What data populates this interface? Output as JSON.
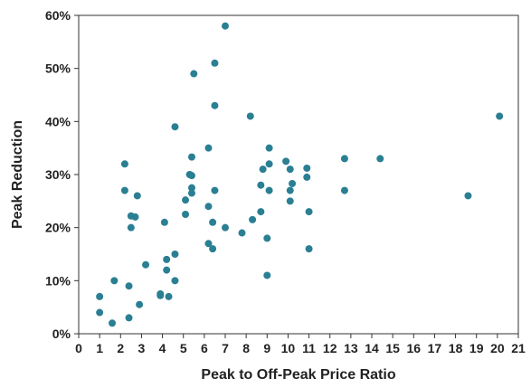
{
  "chart_data": {
    "type": "scatter",
    "title": "",
    "xlabel": "Peak to Off-Peak Price Ratio",
    "ylabel": "Peak Reduction",
    "xlim": [
      0,
      21
    ],
    "ylim": [
      0,
      60
    ],
    "x_ticks": [
      "0",
      "1",
      "2",
      "3",
      "4",
      "5",
      "6",
      "7",
      "8",
      "9",
      "10",
      "11",
      "12",
      "13",
      "14",
      "15",
      "16",
      "17",
      "18",
      "19",
      "20",
      "21"
    ],
    "y_ticks": [
      "0%",
      "10%",
      "20%",
      "30%",
      "40%",
      "50%",
      "60%"
    ],
    "grid": false,
    "legend": "none",
    "marker_color": "#2a7f93",
    "series": [
      {
        "points": [
          [
            1.0,
            7
          ],
          [
            1.0,
            4
          ],
          [
            1.6,
            2
          ],
          [
            1.7,
            10
          ],
          [
            2.2,
            32
          ],
          [
            2.2,
            27
          ],
          [
            2.4,
            9
          ],
          [
            2.4,
            3
          ],
          [
            2.5,
            22.2
          ],
          [
            2.5,
            20
          ],
          [
            2.7,
            22
          ],
          [
            2.8,
            26
          ],
          [
            2.9,
            5.5
          ],
          [
            3.2,
            13
          ],
          [
            3.9,
            7.5
          ],
          [
            3.9,
            7.2
          ],
          [
            4.1,
            21
          ],
          [
            4.2,
            14
          ],
          [
            4.2,
            12
          ],
          [
            4.3,
            7
          ],
          [
            4.6,
            39
          ],
          [
            4.6,
            15
          ],
          [
            4.6,
            10
          ],
          [
            5.1,
            25.2
          ],
          [
            5.1,
            22.5
          ],
          [
            5.3,
            30
          ],
          [
            5.4,
            33.3
          ],
          [
            5.4,
            29.8
          ],
          [
            5.4,
            27.5
          ],
          [
            5.4,
            26.5
          ],
          [
            5.5,
            49
          ],
          [
            6.2,
            35
          ],
          [
            6.2,
            24
          ],
          [
            6.2,
            17
          ],
          [
            6.4,
            21
          ],
          [
            6.4,
            16
          ],
          [
            6.5,
            51
          ],
          [
            6.5,
            43
          ],
          [
            6.5,
            27
          ],
          [
            7.0,
            58
          ],
          [
            7.0,
            20
          ],
          [
            7.8,
            19
          ],
          [
            8.2,
            41
          ],
          [
            8.3,
            21.5
          ],
          [
            8.7,
            28
          ],
          [
            8.7,
            23
          ],
          [
            8.8,
            31
          ],
          [
            9.0,
            18
          ],
          [
            9.0,
            11
          ],
          [
            9.1,
            35
          ],
          [
            9.1,
            32
          ],
          [
            9.1,
            27
          ],
          [
            9.9,
            32.5
          ],
          [
            10.1,
            31
          ],
          [
            10.1,
            27
          ],
          [
            10.1,
            25
          ],
          [
            10.2,
            28.3
          ],
          [
            10.9,
            31.2
          ],
          [
            10.9,
            29.5
          ],
          [
            11.0,
            23
          ],
          [
            11.0,
            16
          ],
          [
            12.7,
            33
          ],
          [
            12.7,
            27
          ],
          [
            14.4,
            33
          ],
          [
            18.6,
            26
          ],
          [
            20.1,
            41
          ]
        ]
      }
    ]
  }
}
